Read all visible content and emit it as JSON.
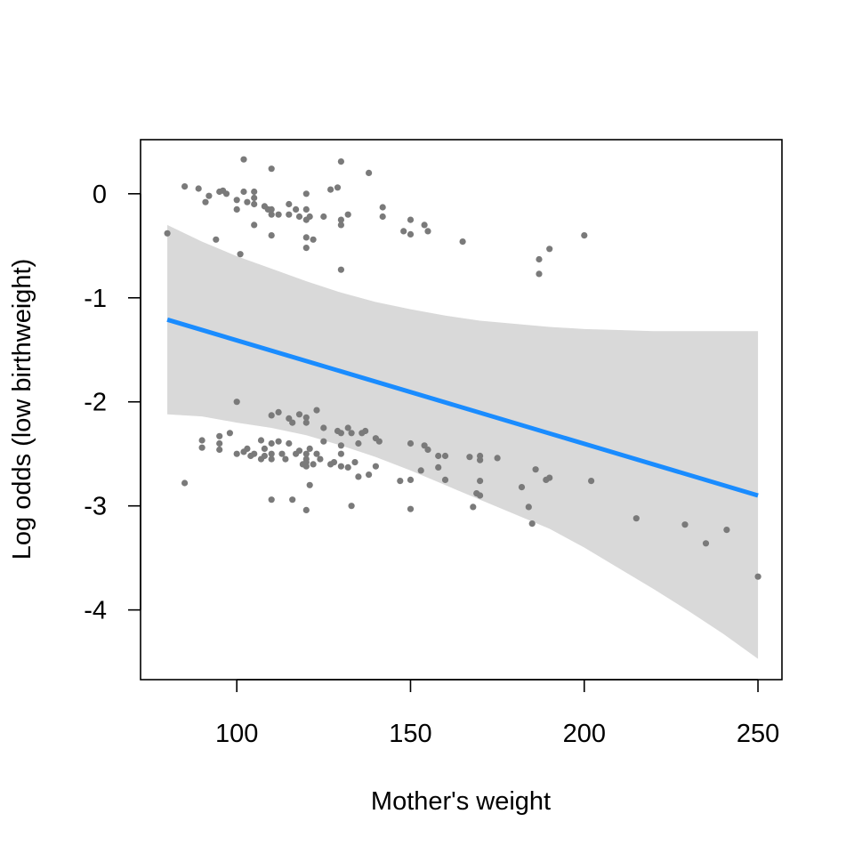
{
  "chart_data": {
    "type": "scatter",
    "title": "",
    "xlabel": "Mother's weight",
    "ylabel": "Log odds (low birthweight)",
    "xlim": [
      72.3,
      256.9
    ],
    "ylim": [
      -4.67,
      0.52
    ],
    "xticks": [
      100,
      150,
      200,
      250
    ],
    "yticks": [
      -4,
      -3,
      -2,
      -1,
      0
    ],
    "grid": false,
    "legend": "none",
    "colors": {
      "points": "#7a7a7a",
      "fit_line": "#1a8cff",
      "confidence_band": "#d9d9d9",
      "frame": "#000000"
    },
    "fit_line": {
      "x": [
        80,
        250
      ],
      "y": [
        -1.21,
        -2.9
      ]
    },
    "confidence_band": {
      "x": [
        80,
        90,
        100,
        110,
        120,
        130,
        140,
        150,
        160,
        170,
        180,
        190,
        200,
        210,
        220,
        230,
        240,
        250
      ],
      "upper": [
        -0.3,
        -0.46,
        -0.6,
        -0.72,
        -0.84,
        -0.95,
        -1.04,
        -1.11,
        -1.17,
        -1.22,
        -1.25,
        -1.28,
        -1.3,
        -1.31,
        -1.32,
        -1.32,
        -1.32,
        -1.32
      ],
      "lower": [
        -2.12,
        -2.14,
        -2.2,
        -2.25,
        -2.32,
        -2.42,
        -2.53,
        -2.66,
        -2.8,
        -2.94,
        -3.08,
        -3.22,
        -3.4,
        -3.6,
        -3.8,
        -4.01,
        -4.23,
        -4.47
      ]
    },
    "points": [
      {
        "x": 80,
        "y": -0.38
      },
      {
        "x": 85,
        "y": 0.07
      },
      {
        "x": 89,
        "y": 0.05
      },
      {
        "x": 91,
        "y": -0.08
      },
      {
        "x": 92,
        "y": -0.02
      },
      {
        "x": 94,
        "y": -0.44
      },
      {
        "x": 95,
        "y": 0.02
      },
      {
        "x": 96,
        "y": 0.03
      },
      {
        "x": 97,
        "y": 0.0
      },
      {
        "x": 100,
        "y": -0.06
      },
      {
        "x": 100,
        "y": -0.15
      },
      {
        "x": 101,
        "y": -0.58
      },
      {
        "x": 102,
        "y": 0.33
      },
      {
        "x": 102,
        "y": 0.02
      },
      {
        "x": 103,
        "y": -0.08
      },
      {
        "x": 105,
        "y": 0.02
      },
      {
        "x": 105,
        "y": -0.04
      },
      {
        "x": 105,
        "y": -0.1
      },
      {
        "x": 105,
        "y": -0.3
      },
      {
        "x": 108,
        "y": -0.12
      },
      {
        "x": 109,
        "y": -0.15
      },
      {
        "x": 110,
        "y": 0.24
      },
      {
        "x": 110,
        "y": -0.15
      },
      {
        "x": 110,
        "y": -0.2
      },
      {
        "x": 110,
        "y": -0.4
      },
      {
        "x": 112,
        "y": -0.2
      },
      {
        "x": 115,
        "y": -0.1
      },
      {
        "x": 115,
        "y": -0.2
      },
      {
        "x": 117,
        "y": -0.15
      },
      {
        "x": 118,
        "y": -0.22
      },
      {
        "x": 120,
        "y": 0.0
      },
      {
        "x": 120,
        "y": -0.15
      },
      {
        "x": 120,
        "y": -0.25
      },
      {
        "x": 120,
        "y": -0.42
      },
      {
        "x": 120,
        "y": -0.52
      },
      {
        "x": 121,
        "y": -0.22
      },
      {
        "x": 122,
        "y": -0.44
      },
      {
        "x": 125,
        "y": -0.22
      },
      {
        "x": 127,
        "y": 0.04
      },
      {
        "x": 129,
        "y": 0.06
      },
      {
        "x": 130,
        "y": 0.31
      },
      {
        "x": 130,
        "y": -0.25
      },
      {
        "x": 130,
        "y": -0.3
      },
      {
        "x": 130,
        "y": -0.73
      },
      {
        "x": 132,
        "y": -0.2
      },
      {
        "x": 138,
        "y": 0.2
      },
      {
        "x": 142,
        "y": -0.13
      },
      {
        "x": 142,
        "y": -0.22
      },
      {
        "x": 148,
        "y": -0.36
      },
      {
        "x": 150,
        "y": -0.25
      },
      {
        "x": 150,
        "y": -0.39
      },
      {
        "x": 154,
        "y": -0.3
      },
      {
        "x": 155,
        "y": -0.36
      },
      {
        "x": 165,
        "y": -0.46
      },
      {
        "x": 187,
        "y": -0.63
      },
      {
        "x": 187,
        "y": -0.77
      },
      {
        "x": 190,
        "y": -0.53
      },
      {
        "x": 200,
        "y": -0.4
      },
      {
        "x": 85,
        "y": -2.78
      },
      {
        "x": 90,
        "y": -2.37
      },
      {
        "x": 90,
        "y": -2.44
      },
      {
        "x": 95,
        "y": -2.33
      },
      {
        "x": 95,
        "y": -2.4
      },
      {
        "x": 95,
        "y": -2.46
      },
      {
        "x": 98,
        "y": -2.3
      },
      {
        "x": 100,
        "y": -2.0
      },
      {
        "x": 100,
        "y": -2.5
      },
      {
        "x": 102,
        "y": -2.48
      },
      {
        "x": 103,
        "y": -2.45
      },
      {
        "x": 104,
        "y": -2.52
      },
      {
        "x": 105,
        "y": -2.5
      },
      {
        "x": 107,
        "y": -2.37
      },
      {
        "x": 107,
        "y": -2.55
      },
      {
        "x": 108,
        "y": -2.52
      },
      {
        "x": 108,
        "y": -2.45
      },
      {
        "x": 110,
        "y": -2.13
      },
      {
        "x": 110,
        "y": -2.4
      },
      {
        "x": 110,
        "y": -2.5
      },
      {
        "x": 110,
        "y": -2.55
      },
      {
        "x": 110,
        "y": -2.94
      },
      {
        "x": 112,
        "y": -2.1
      },
      {
        "x": 112,
        "y": -2.38
      },
      {
        "x": 113,
        "y": -2.5
      },
      {
        "x": 114,
        "y": -2.55
      },
      {
        "x": 115,
        "y": -2.16
      },
      {
        "x": 115,
        "y": -2.4
      },
      {
        "x": 116,
        "y": -2.2
      },
      {
        "x": 116,
        "y": -2.94
      },
      {
        "x": 117,
        "y": -2.5
      },
      {
        "x": 118,
        "y": -2.12
      },
      {
        "x": 118,
        "y": -2.47
      },
      {
        "x": 119,
        "y": -2.6
      },
      {
        "x": 120,
        "y": -2.15
      },
      {
        "x": 120,
        "y": -2.2
      },
      {
        "x": 120,
        "y": -2.5
      },
      {
        "x": 120,
        "y": -2.55
      },
      {
        "x": 120,
        "y": -2.58
      },
      {
        "x": 120,
        "y": -2.62
      },
      {
        "x": 120,
        "y": -3.04
      },
      {
        "x": 121,
        "y": -2.45
      },
      {
        "x": 121,
        "y": -2.8
      },
      {
        "x": 122,
        "y": -2.6
      },
      {
        "x": 123,
        "y": -2.08
      },
      {
        "x": 123,
        "y": -2.5
      },
      {
        "x": 124,
        "y": -2.55
      },
      {
        "x": 125,
        "y": -2.25
      },
      {
        "x": 125,
        "y": -2.38
      },
      {
        "x": 127,
        "y": -2.6
      },
      {
        "x": 128,
        "y": -2.58
      },
      {
        "x": 129,
        "y": -2.28
      },
      {
        "x": 130,
        "y": -2.3
      },
      {
        "x": 130,
        "y": -2.42
      },
      {
        "x": 130,
        "y": -2.5
      },
      {
        "x": 130,
        "y": -2.62
      },
      {
        "x": 132,
        "y": -2.25
      },
      {
        "x": 132,
        "y": -2.63
      },
      {
        "x": 133,
        "y": -2.3
      },
      {
        "x": 133,
        "y": -3.0
      },
      {
        "x": 134,
        "y": -2.58
      },
      {
        "x": 135,
        "y": -2.4
      },
      {
        "x": 135,
        "y": -2.72
      },
      {
        "x": 136,
        "y": -2.3
      },
      {
        "x": 137,
        "y": -2.28
      },
      {
        "x": 138,
        "y": -2.7
      },
      {
        "x": 140,
        "y": -2.35
      },
      {
        "x": 140,
        "y": -2.62
      },
      {
        "x": 141,
        "y": -2.38
      },
      {
        "x": 147,
        "y": -2.76
      },
      {
        "x": 150,
        "y": -2.4
      },
      {
        "x": 150,
        "y": -2.75
      },
      {
        "x": 150,
        "y": -3.03
      },
      {
        "x": 153,
        "y": -2.66
      },
      {
        "x": 154,
        "y": -2.42
      },
      {
        "x": 155,
        "y": -2.46
      },
      {
        "x": 158,
        "y": -2.52
      },
      {
        "x": 158,
        "y": -2.63
      },
      {
        "x": 160,
        "y": -2.52
      },
      {
        "x": 160,
        "y": -2.75
      },
      {
        "x": 167,
        "y": -2.53
      },
      {
        "x": 168,
        "y": -3.01
      },
      {
        "x": 169,
        "y": -2.88
      },
      {
        "x": 170,
        "y": -2.52
      },
      {
        "x": 170,
        "y": -2.56
      },
      {
        "x": 170,
        "y": -2.76
      },
      {
        "x": 170,
        "y": -2.9
      },
      {
        "x": 175,
        "y": -2.54
      },
      {
        "x": 182,
        "y": -2.82
      },
      {
        "x": 184,
        "y": -3.01
      },
      {
        "x": 185,
        "y": -3.17
      },
      {
        "x": 186,
        "y": -2.65
      },
      {
        "x": 189,
        "y": -2.75
      },
      {
        "x": 190,
        "y": -2.73
      },
      {
        "x": 202,
        "y": -2.76
      },
      {
        "x": 215,
        "y": -3.12
      },
      {
        "x": 229,
        "y": -3.18
      },
      {
        "x": 235,
        "y": -3.36
      },
      {
        "x": 241,
        "y": -3.23
      },
      {
        "x": 250,
        "y": -3.68
      }
    ]
  }
}
